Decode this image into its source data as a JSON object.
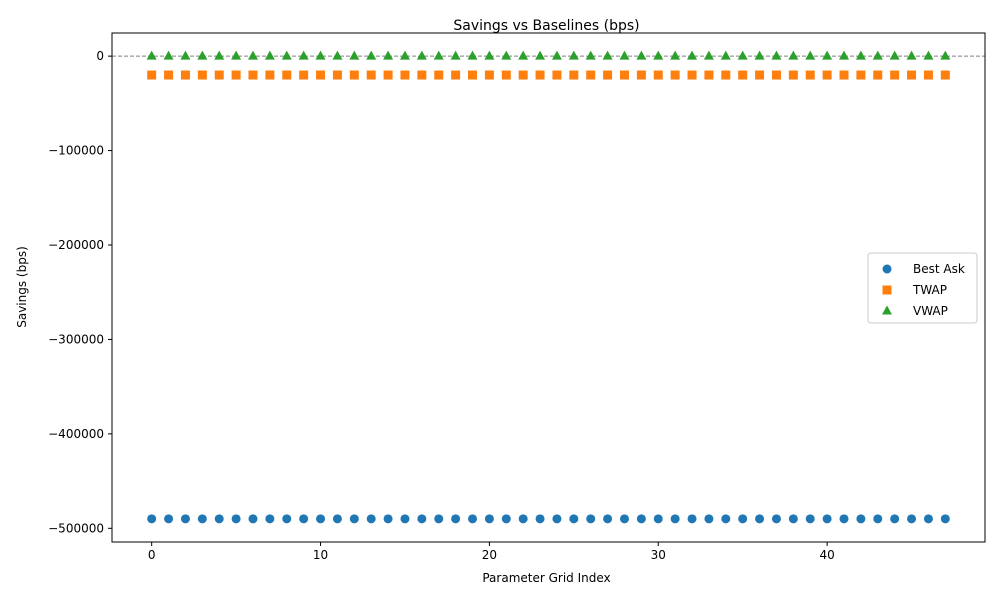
{
  "chart_data": {
    "type": "scatter",
    "title": "Savings vs Baselines (bps)",
    "xlabel": "Parameter Grid Index",
    "ylabel": "Savings (bps)",
    "xlim": [
      -2.35,
      49.35
    ],
    "ylim": [
      -514500,
      24500
    ],
    "xticks": [
      0,
      10,
      20,
      30,
      40
    ],
    "xtick_labels": [
      "0",
      "10",
      "20",
      "30",
      "40"
    ],
    "yticks": [
      0,
      -100000,
      -200000,
      -300000,
      -400000,
      -500000
    ],
    "ytick_labels": [
      "0",
      "−100000",
      "−200000",
      "−300000",
      "−400000",
      "−500000"
    ],
    "x": [
      0,
      1,
      2,
      3,
      4,
      5,
      6,
      7,
      8,
      9,
      10,
      11,
      12,
      13,
      14,
      15,
      16,
      17,
      18,
      19,
      20,
      21,
      22,
      23,
      24,
      25,
      26,
      27,
      28,
      29,
      30,
      31,
      32,
      33,
      34,
      35,
      36,
      37,
      38,
      39,
      40,
      41,
      42,
      43,
      44,
      45,
      46,
      47
    ],
    "reference_line": {
      "y": 0,
      "style": "dashed",
      "color": "#808080"
    },
    "grid": false,
    "legend_position": "center-right",
    "series": [
      {
        "name": "Best Ask",
        "marker": "circle",
        "color": "#1f77b4",
        "values": [
          -490000,
          -490000,
          -490000,
          -490000,
          -490000,
          -490000,
          -490000,
          -490000,
          -490000,
          -490000,
          -490000,
          -490000,
          -490000,
          -490000,
          -490000,
          -490000,
          -490000,
          -490000,
          -490000,
          -490000,
          -490000,
          -490000,
          -490000,
          -490000,
          -490000,
          -490000,
          -490000,
          -490000,
          -490000,
          -490000,
          -490000,
          -490000,
          -490000,
          -490000,
          -490000,
          -490000,
          -490000,
          -490000,
          -490000,
          -490000,
          -490000,
          -490000,
          -490000,
          -490000,
          -490000,
          -490000,
          -490000,
          -490000
        ]
      },
      {
        "name": "TWAP",
        "marker": "square",
        "color": "#ff7f0e",
        "values": [
          -20000,
          -20000,
          -20000,
          -20000,
          -20000,
          -20000,
          -20000,
          -20000,
          -20000,
          -20000,
          -20000,
          -20000,
          -20000,
          -20000,
          -20000,
          -20000,
          -20000,
          -20000,
          -20000,
          -20000,
          -20000,
          -20000,
          -20000,
          -20000,
          -20000,
          -20000,
          -20000,
          -20000,
          -20000,
          -20000,
          -20000,
          -20000,
          -20000,
          -20000,
          -20000,
          -20000,
          -20000,
          -20000,
          -20000,
          -20000,
          -20000,
          -20000,
          -20000,
          -20000,
          -20000,
          -20000,
          -20000,
          -20000
        ]
      },
      {
        "name": "VWAP",
        "marker": "triangle",
        "color": "#2ca02c",
        "values": [
          0,
          0,
          0,
          0,
          0,
          0,
          0,
          0,
          0,
          0,
          0,
          0,
          0,
          0,
          0,
          0,
          0,
          0,
          0,
          0,
          0,
          0,
          0,
          0,
          0,
          0,
          0,
          0,
          0,
          0,
          0,
          0,
          0,
          0,
          0,
          0,
          0,
          0,
          0,
          0,
          0,
          0,
          0,
          0,
          0,
          0,
          0,
          0
        ]
      }
    ]
  }
}
